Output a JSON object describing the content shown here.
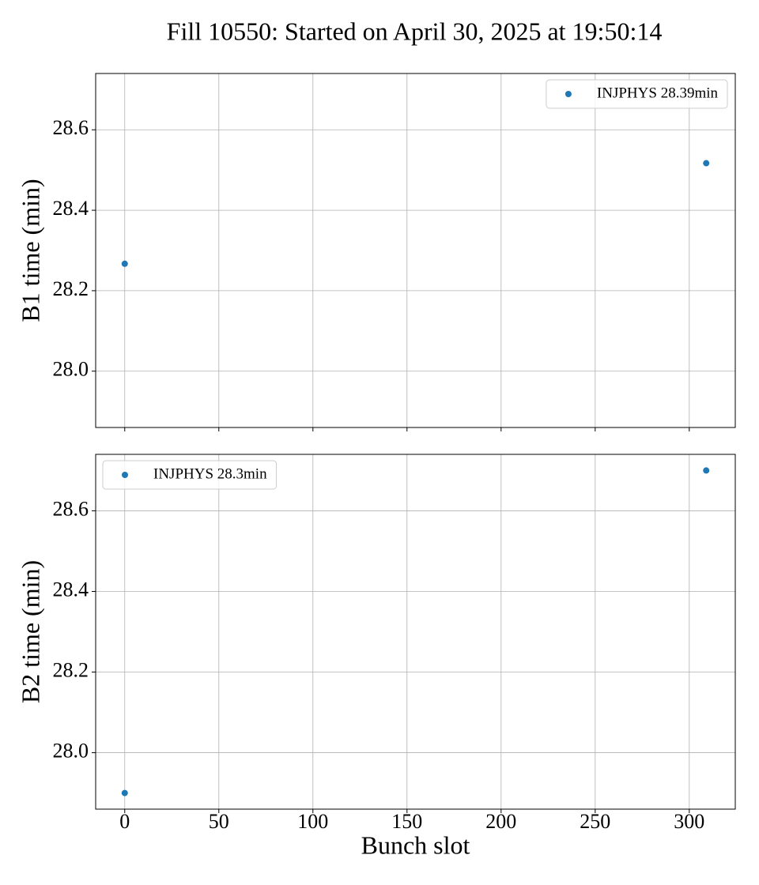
{
  "title": "Fill 10550: Started on April 30, 2025 at 19:50:14",
  "chart_data": [
    {
      "type": "scatter",
      "ylabel": "B1 time (min)",
      "series": [
        {
          "name": "INJPHYS 28.39min",
          "color": "#1f77b4",
          "x": [
            0,
            309
          ],
          "values": [
            28.267,
            28.517
          ]
        }
      ],
      "xlim": [
        -15.45,
        324.45
      ],
      "xticks": [
        0,
        50,
        100,
        150,
        200,
        250,
        300
      ],
      "ylim": [
        27.86,
        28.74
      ],
      "yticks": [
        {
          "value": 28.0,
          "label": "28.0"
        },
        28.2,
        28.4,
        28.6
      ],
      "grid": true,
      "legend": "upper right"
    },
    {
      "type": "scatter",
      "ylabel": "B2 time (min)",
      "xlabel": "Bunch slot",
      "series": [
        {
          "name": "INJPHYS 28.3min",
          "color": "#1f77b4",
          "x": [
            0,
            309
          ],
          "values": [
            27.9,
            28.7
          ]
        }
      ],
      "xlim": [
        -15.45,
        324.45
      ],
      "xticks": [
        0,
        50,
        100,
        150,
        200,
        250,
        300
      ],
      "ylim": [
        27.86,
        28.74
      ],
      "yticks": [
        {
          "value": 28.0,
          "label": "28.0"
        },
        28.2,
        28.4,
        28.6
      ],
      "grid": true,
      "legend": "upper left",
      "show_xtick_labels": true
    }
  ]
}
